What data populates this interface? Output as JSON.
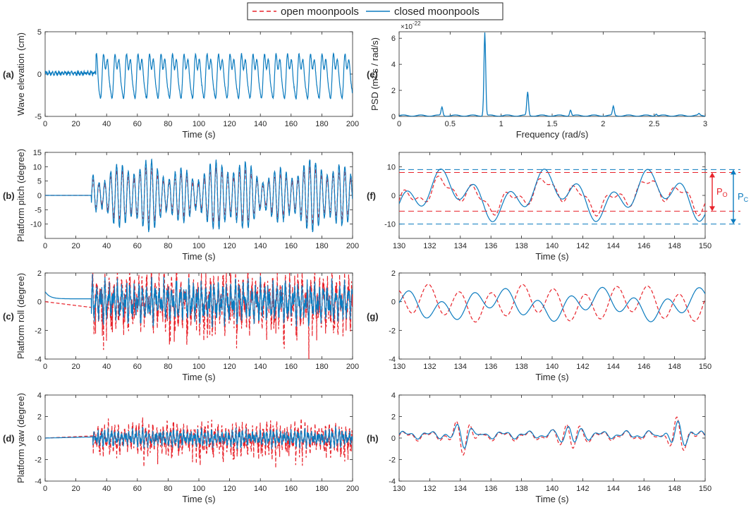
{
  "legend": {
    "open_label": "open moonpools",
    "closed_label": "closed moonpools"
  },
  "colors": {
    "open": "#e8232b",
    "closed": "#0b7bbf",
    "axis": "#262626",
    "grid_text": "#262626"
  },
  "chart_data": [
    {
      "id": "a",
      "type": "line",
      "panel_label": "(a)",
      "title": "",
      "xlabel": "Time (s)",
      "ylabel": "Wave elevation (cm)",
      "xlim": [
        0,
        200
      ],
      "ylim": [
        -5,
        5
      ],
      "xticks": [
        0,
        20,
        40,
        60,
        80,
        100,
        120,
        140,
        160,
        180,
        200
      ],
      "yticks": [
        -5,
        0,
        5
      ],
      "series": [
        {
          "name": "closed moonpools",
          "style": "solid",
          "signal": "wave",
          "onset": 33,
          "pre_level": 0.1,
          "amplitude": 2.4,
          "frequency_rad_s": 0.84,
          "noise": 0.1
        }
      ]
    },
    {
      "id": "b",
      "type": "line",
      "panel_label": "(b)",
      "title": "",
      "xlabel": "Time (s)",
      "ylabel": "Platform pitch (degree)",
      "xlim": [
        0,
        200
      ],
      "ylim": [
        -15,
        15
      ],
      "xticks": [
        0,
        20,
        40,
        60,
        80,
        100,
        120,
        140,
        160,
        180,
        200
      ],
      "yticks": [
        -10,
        -5,
        0,
        5,
        10,
        15
      ],
      "series": [
        {
          "name": "open moonpools",
          "style": "dashed",
          "signal": "pitch",
          "onset": 30,
          "pre_level": 0,
          "amplitude": 6.5,
          "frequency_rad_s": 1.65
        },
        {
          "name": "closed moonpools",
          "style": "solid",
          "signal": "pitch",
          "onset": 30,
          "pre_level": 0,
          "amplitude": 8.5,
          "frequency_rad_s": 1.65
        }
      ]
    },
    {
      "id": "c",
      "type": "line",
      "panel_label": "(c)",
      "title": "",
      "xlabel": "Time (s)",
      "ylabel": "Platform roll (degree)",
      "xlim": [
        0,
        200
      ],
      "ylim": [
        -4,
        2
      ],
      "xticks": [
        0,
        20,
        40,
        60,
        80,
        100,
        120,
        140,
        160,
        180,
        200
      ],
      "yticks": [
        -4,
        -2,
        0,
        2
      ],
      "series": [
        {
          "name": "open moonpools",
          "style": "dashed",
          "signal": "roll",
          "onset": 30,
          "pre_level": -0.4,
          "amplitude": 1.3,
          "frequency_rad_s": 2.3
        },
        {
          "name": "closed moonpools",
          "style": "solid",
          "signal": "roll",
          "onset": 30,
          "pre_level": 0.2,
          "amplitude": 0.9,
          "frequency_rad_s": 2.3
        }
      ]
    },
    {
      "id": "d",
      "type": "line",
      "panel_label": "(d)",
      "title": "",
      "xlabel": "Time (s)",
      "ylabel": "Platform yaw (degree)",
      "xlim": [
        0,
        200
      ],
      "ylim": [
        -4,
        4
      ],
      "xticks": [
        0,
        20,
        40,
        60,
        80,
        100,
        120,
        140,
        160,
        180,
        200
      ],
      "yticks": [
        -4,
        -2,
        0,
        2,
        4
      ],
      "series": [
        {
          "name": "open moonpools",
          "style": "dashed",
          "signal": "yaw",
          "onset": 31,
          "pre_level": 0.2,
          "amplitude": 0.9,
          "frequency_rad_s": 2.8
        },
        {
          "name": "closed moonpools",
          "style": "solid",
          "signal": "yaw",
          "onset": 31,
          "pre_level": 0.1,
          "amplitude": 0.5,
          "frequency_rad_s": 2.8
        }
      ]
    },
    {
      "id": "e",
      "type": "line",
      "panel_label": "(e)",
      "title": "",
      "xlabel": "Frequency (rad/s)",
      "ylabel": "PSD (m² s / rad/s)",
      "exponent_label": "×10",
      "exponent_power": "-22",
      "xlim": [
        0,
        3
      ],
      "ylim": [
        0,
        6.5
      ],
      "xticks": [
        0,
        0.5,
        1,
        1.5,
        2,
        2.5,
        3
      ],
      "yticks": [
        0,
        2,
        4,
        6
      ],
      "peaks": [
        {
          "x": 0.42,
          "y": 0.65
        },
        {
          "x": 0.84,
          "y": 6.4
        },
        {
          "x": 1.26,
          "y": 1.8
        },
        {
          "x": 1.68,
          "y": 0.45
        },
        {
          "x": 2.1,
          "y": 0.7
        },
        {
          "x": 2.52,
          "y": 0.15
        },
        {
          "x": 2.94,
          "y": 0.12
        }
      ],
      "series": [
        {
          "name": "closed moonpools",
          "style": "solid"
        }
      ]
    },
    {
      "id": "f",
      "type": "line",
      "panel_label": "(f)",
      "title": "",
      "xlabel": "Time (s)",
      "ylabel": "",
      "xlim": [
        130,
        150
      ],
      "ylim": [
        -15,
        15
      ],
      "xticks": [
        130,
        132,
        134,
        136,
        138,
        140,
        142,
        144,
        146,
        148,
        150
      ],
      "yticks": [
        -10,
        0,
        10
      ],
      "series": [
        {
          "name": "open moonpools",
          "style": "dashed",
          "signal": "pitch_zoom",
          "amplitude": 6.5
        },
        {
          "name": "closed moonpools",
          "style": "solid",
          "signal": "pitch_zoom",
          "amplitude": 8.5
        }
      ],
      "ref_lines": [
        {
          "y": 9,
          "series": "closed moonpools"
        },
        {
          "y": 8,
          "series": "open moonpools"
        },
        {
          "y": -5.5,
          "series": "open moonpools"
        },
        {
          "y": -10,
          "series": "closed moonpools"
        }
      ],
      "annotations": [
        {
          "label_main": "P",
          "label_sub": "O",
          "series": "open moonpools",
          "y_top": 8,
          "y_bottom": -5.5
        },
        {
          "label_main": "P",
          "label_sub": "C",
          "series": "closed moonpools",
          "y_top": 9,
          "y_bottom": -10
        }
      ]
    },
    {
      "id": "g",
      "type": "line",
      "panel_label": "(g)",
      "title": "",
      "xlabel": "Time (s)",
      "ylabel": "",
      "xlim": [
        130,
        150
      ],
      "ylim": [
        -4,
        2
      ],
      "xticks": [
        130,
        132,
        134,
        136,
        138,
        140,
        142,
        144,
        146,
        148,
        150
      ],
      "yticks": [
        -4,
        -2,
        0,
        2
      ],
      "series": [
        {
          "name": "open moonpools",
          "style": "dashed",
          "signal": "roll_zoom",
          "amplitude": 1.2
        },
        {
          "name": "closed moonpools",
          "style": "solid",
          "signal": "roll_zoom",
          "amplitude": 1.0
        }
      ]
    },
    {
      "id": "h",
      "type": "line",
      "panel_label": "(h)",
      "title": "",
      "xlabel": "Time (s)",
      "ylabel": "",
      "xlim": [
        130,
        150
      ],
      "ylim": [
        -4,
        4
      ],
      "xticks": [
        130,
        132,
        134,
        136,
        138,
        140,
        142,
        144,
        146,
        148,
        150
      ],
      "yticks": [
        -4,
        -2,
        0,
        2,
        4
      ],
      "series": [
        {
          "name": "open moonpools",
          "style": "dashed",
          "signal": "yaw_zoom",
          "amplitude": 1.0
        },
        {
          "name": "closed moonpools",
          "style": "solid",
          "signal": "yaw_zoom",
          "amplitude": 0.8
        }
      ]
    }
  ]
}
